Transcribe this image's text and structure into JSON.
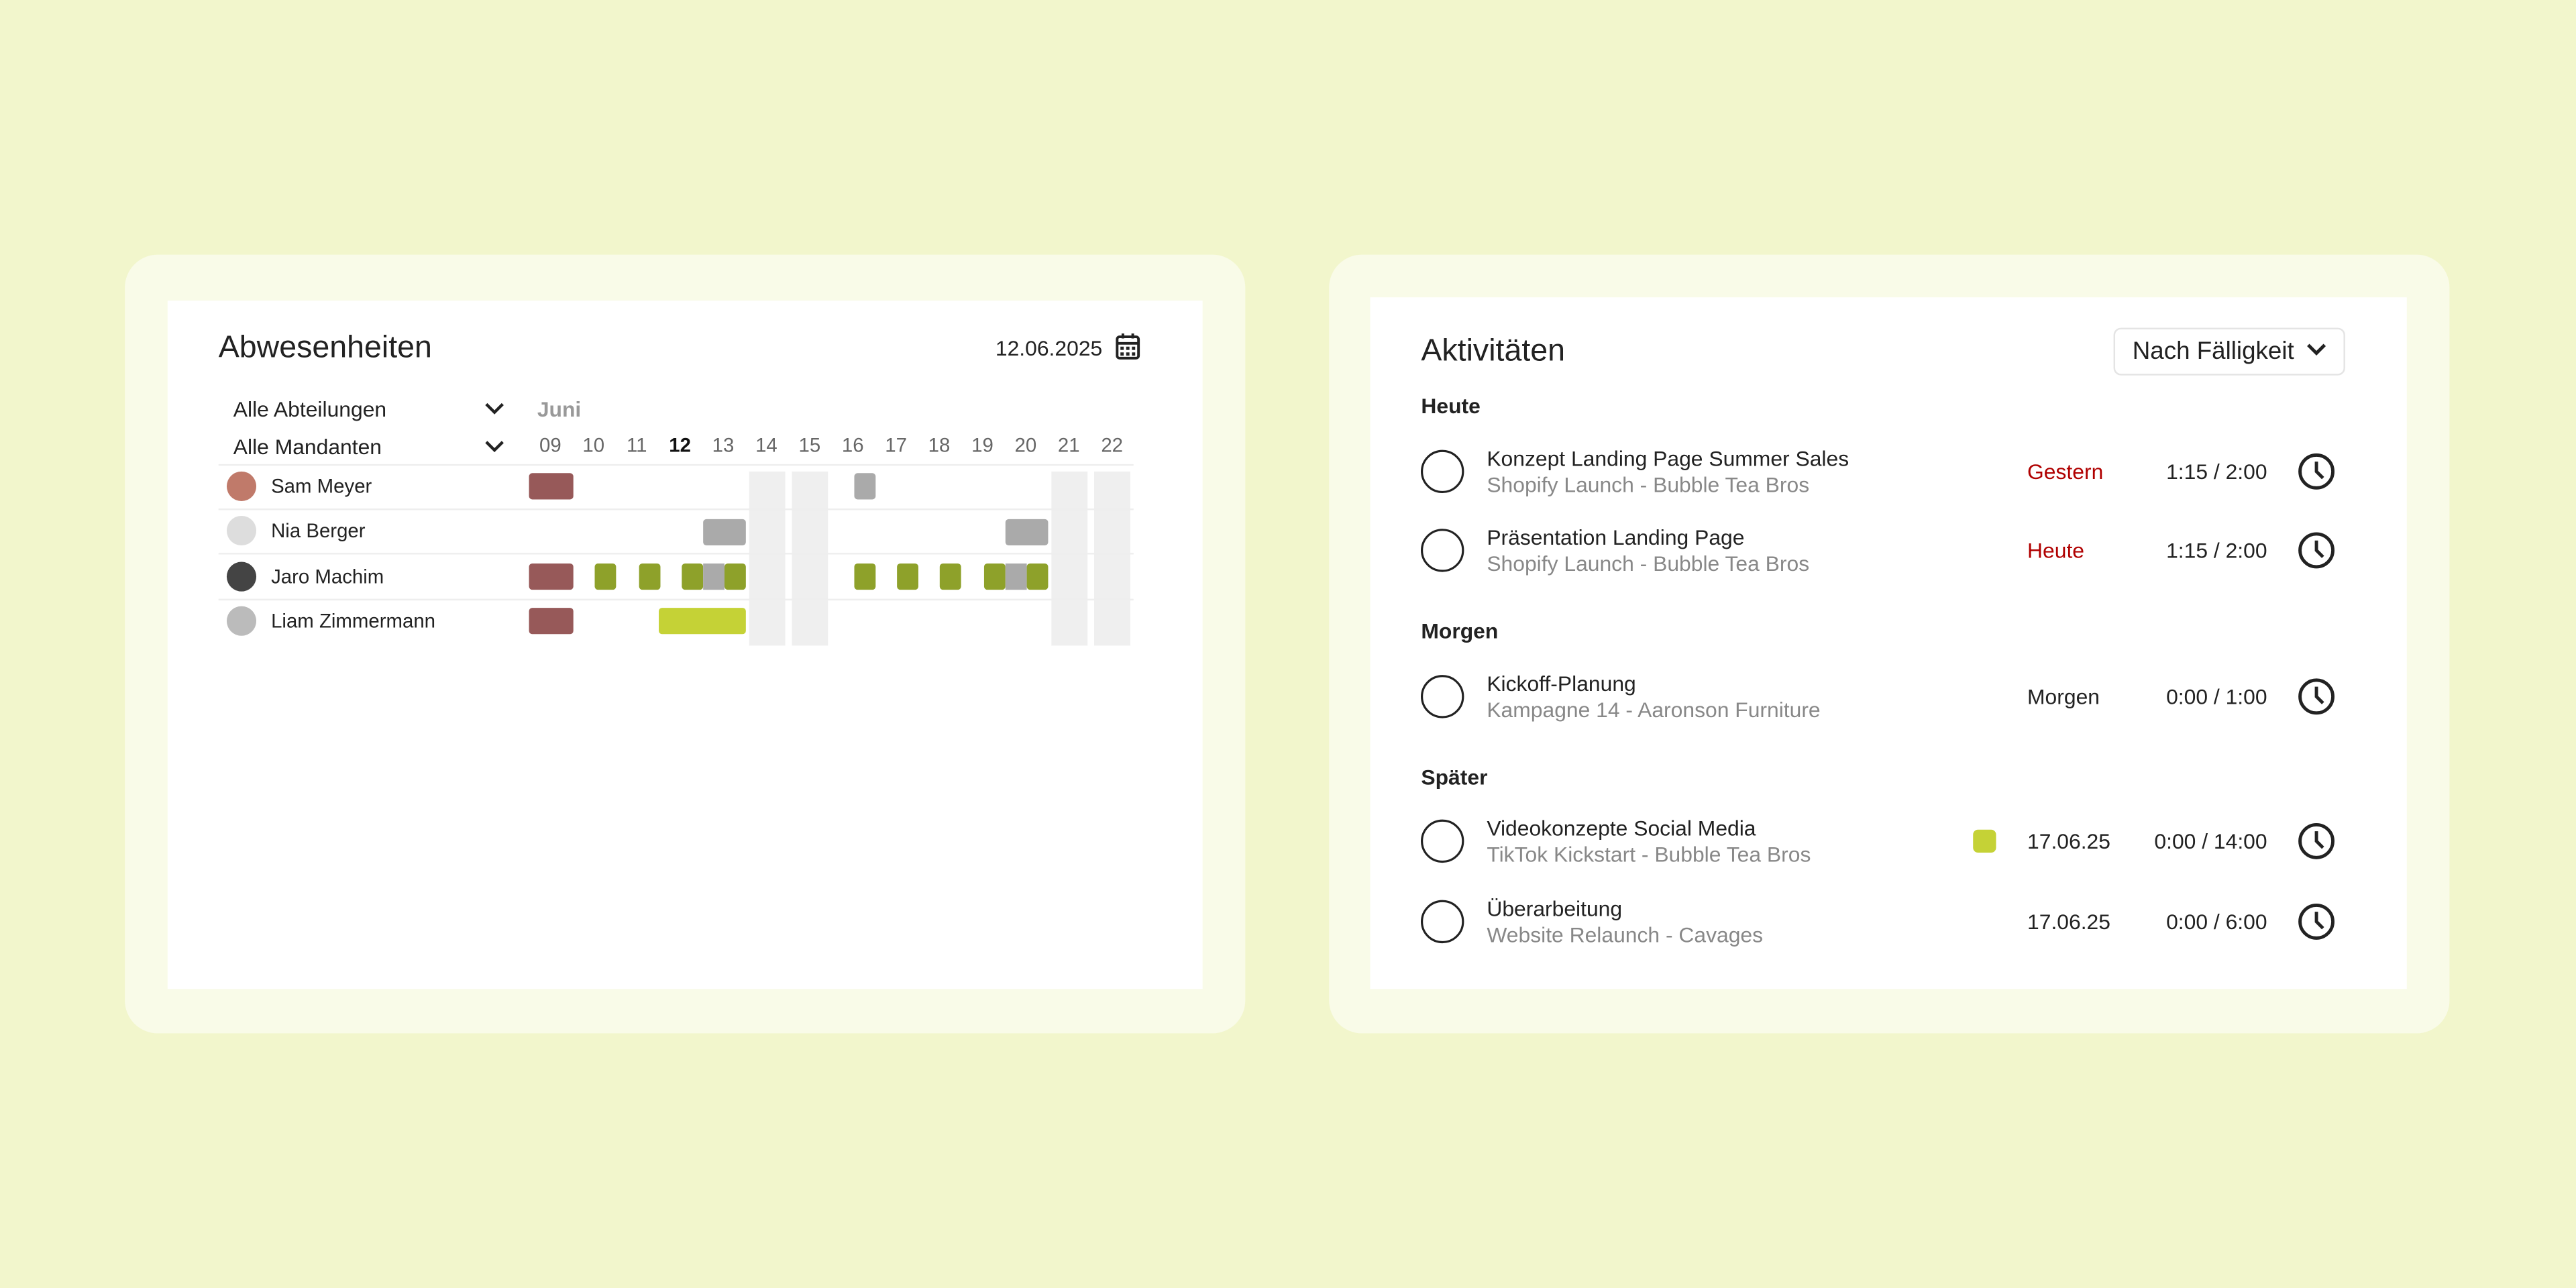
{
  "absences": {
    "title": "Abwesenheiten",
    "date": "12.06.2025",
    "filters": [
      "Alle Abteilungen",
      "Alle Mandanten"
    ],
    "month": "Juni",
    "days": [
      "09",
      "10",
      "11",
      "12",
      "13",
      "14",
      "15",
      "16",
      "17",
      "18",
      "19",
      "20",
      "21",
      "22"
    ],
    "today": "12",
    "people": [
      "Sam Meyer",
      "Nia Berger",
      "Jaro Machim",
      "Liam Zimmermann"
    ]
  },
  "activities": {
    "title": "Aktivitäten",
    "sort": "Nach Fälligkeit",
    "groups": [
      {
        "label": "Heute",
        "items": [
          {
            "title": "Konzept Landing Page Summer Sales",
            "subtitle": "Shopify Launch - Bubble Tea Bros",
            "due": "Gestern",
            "due_color": "#b00000",
            "time": "1:15 / 2:00"
          },
          {
            "title": "Präsentation Landing Page",
            "subtitle": "Shopify Launch - Bubble Tea Bros",
            "due": "Heute",
            "due_color": "#b00000",
            "time": "1:15 / 2:00"
          }
        ]
      },
      {
        "label": "Morgen",
        "items": [
          {
            "title": "Kickoff-Planung",
            "subtitle": "Kampagne 14 - Aaronson Furniture",
            "due": "Morgen",
            "time": "0:00 / 1:00"
          }
        ]
      },
      {
        "label": "Später",
        "items": [
          {
            "title": "Videokonzepte Social Media",
            "subtitle": "TikTok Kickstart - Bubble Tea Bros",
            "due": "17.06.25",
            "time": "0:00 / 14:00"
          },
          {
            "title": "Überarbeitung",
            "subtitle": "Website Relaunch - Cavages",
            "due": "17.06.25",
            "time": "0:00 / 6:00"
          }
        ]
      }
    ]
  }
}
